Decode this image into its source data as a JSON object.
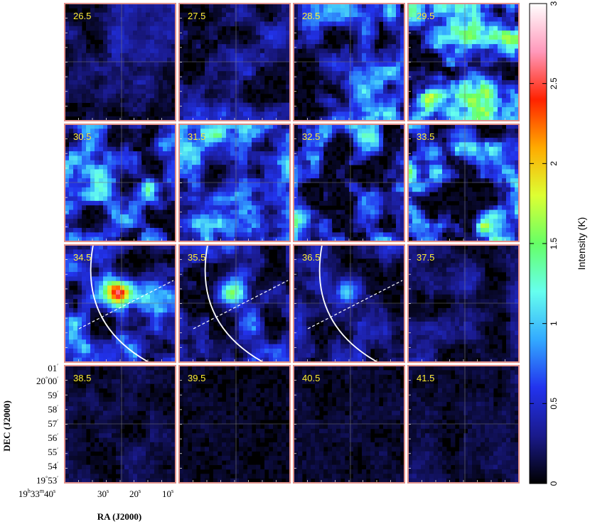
{
  "chart_data": {
    "type": "heatmap",
    "layout": "channel-map grid, 4 rows x 4 columns",
    "panels": [
      {
        "velocity": "26.5",
        "level": 0.35
      },
      {
        "velocity": "27.5",
        "level": 0.55
      },
      {
        "velocity": "28.5",
        "level": 0.9
      },
      {
        "velocity": "29.5",
        "level": 1.4
      },
      {
        "velocity": "30.5",
        "level": 1.1
      },
      {
        "velocity": "31.5",
        "level": 1.0
      },
      {
        "velocity": "32.5",
        "level": 1.1
      },
      {
        "velocity": "33.5",
        "level": 1.35
      },
      {
        "velocity": "34.5",
        "level": 0.8,
        "arc": true,
        "dashed_line": true
      },
      {
        "velocity": "35.5",
        "level": 0.65,
        "arc": true,
        "dashed_line": true
      },
      {
        "velocity": "36.5",
        "level": 0.45,
        "arc": true,
        "dashed_line": true
      },
      {
        "velocity": "37.5",
        "level": 0.3
      },
      {
        "velocity": "38.5",
        "level": 0.15
      },
      {
        "velocity": "39.5",
        "level": 0.08
      },
      {
        "velocity": "40.5",
        "level": 0.08
      },
      {
        "velocity": "41.5",
        "level": 0.15
      }
    ],
    "xlabel": "RA (J2000)",
    "ylabel": "DEC (J2000)",
    "x_ticks": [
      {
        "h": "19",
        "m": "33",
        "s": "40"
      },
      {
        "s": "30"
      },
      {
        "s": "20"
      },
      {
        "s": "10"
      }
    ],
    "y_ticks": [
      {
        "deg": "",
        "min": "01"
      },
      {
        "deg": "20",
        "min": "00"
      },
      {
        "deg": "",
        "min": "59"
      },
      {
        "deg": "",
        "min": "58"
      },
      {
        "deg": "",
        "min": "57"
      },
      {
        "deg": "",
        "min": "56"
      },
      {
        "deg": "",
        "min": "55"
      },
      {
        "deg": "",
        "min": "54"
      },
      {
        "deg": "19",
        "min": "53"
      }
    ],
    "colorbar": {
      "label": "Intensity (K)",
      "range": [
        0,
        3
      ],
      "ticks": [
        "0",
        "0.5",
        "1",
        "1.5",
        "2",
        "2.5",
        "3"
      ],
      "colormap": [
        "#000000",
        "#1a1a8c",
        "#2233ee",
        "#33aaff",
        "#66ffee",
        "#66ff66",
        "#ddff33",
        "#ffaa00",
        "#ff2200",
        "#ff99bb",
        "#ffffff"
      ]
    },
    "frame_color": "#e0908a",
    "label_color": "#ffee33"
  }
}
